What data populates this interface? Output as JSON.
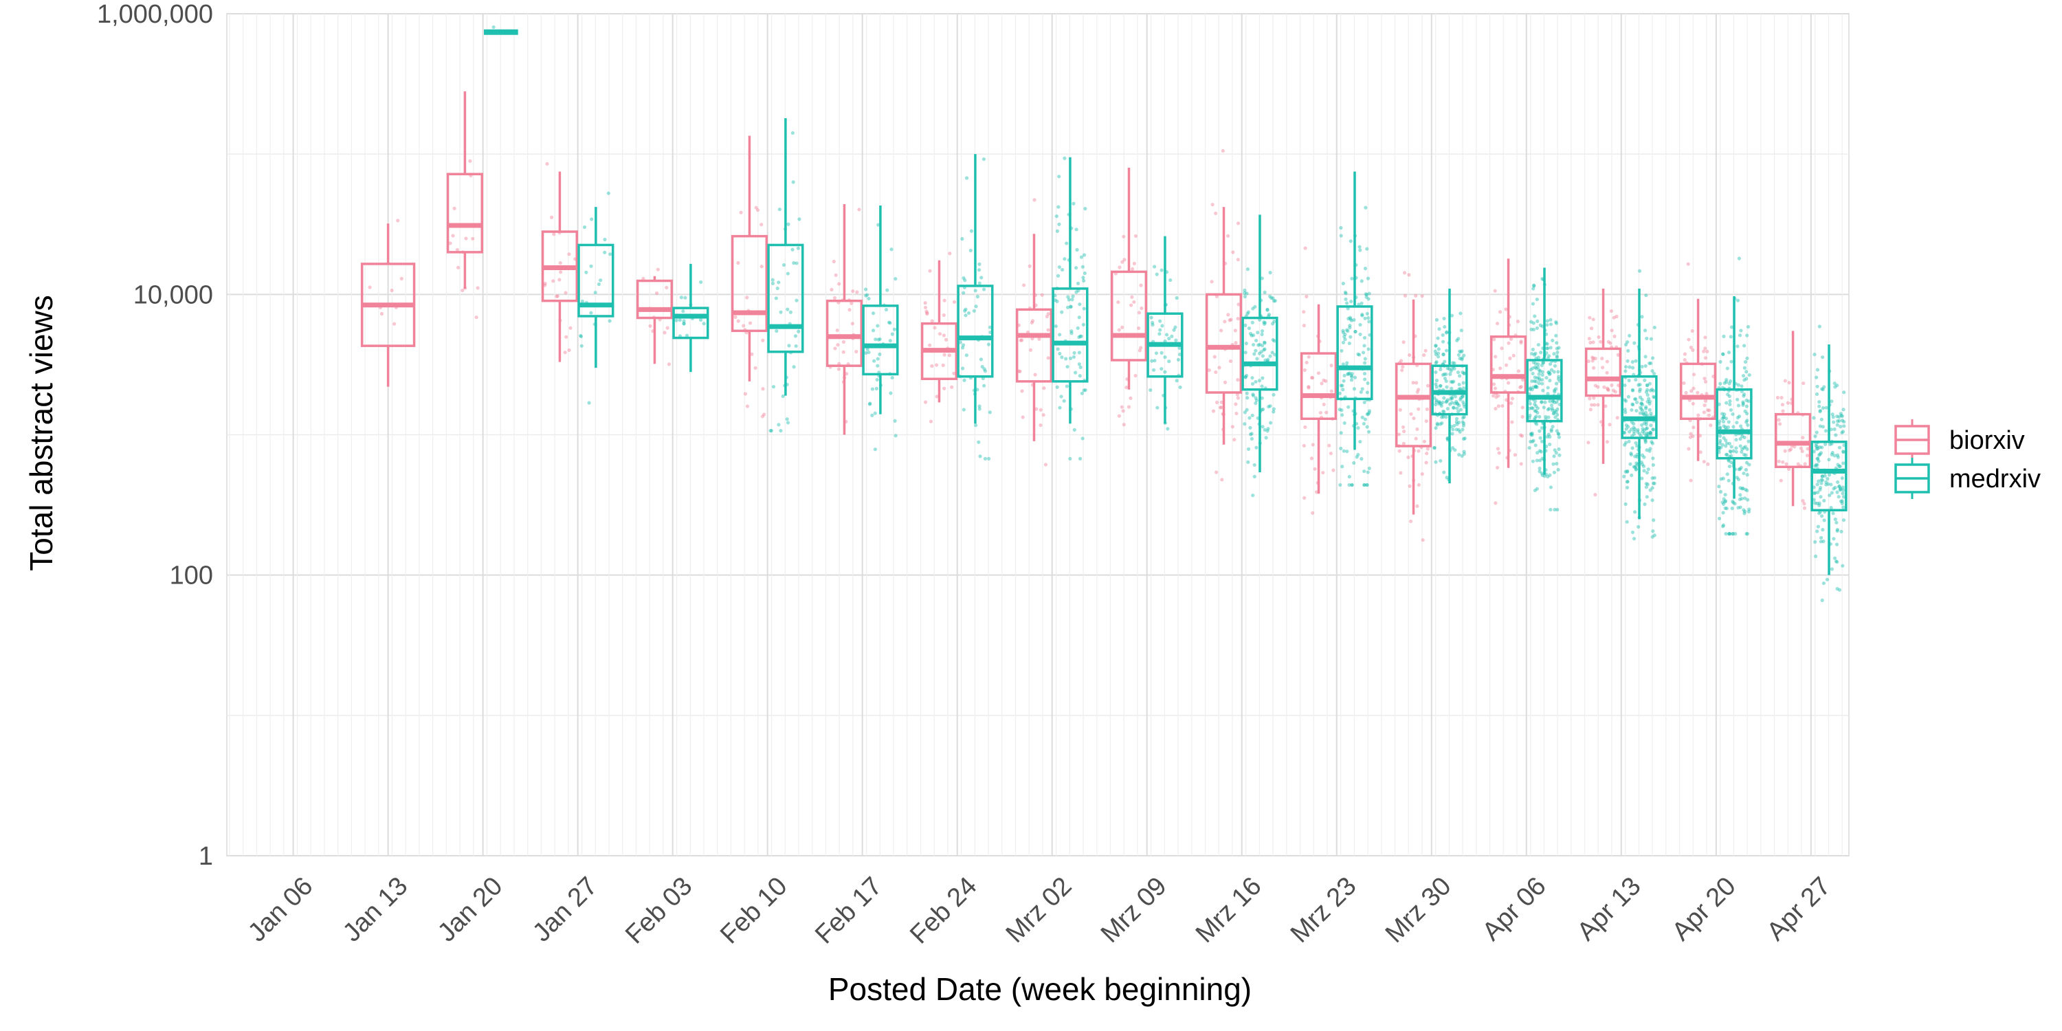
{
  "chart_data": {
    "type": "boxplot",
    "xlabel": "Posted Date (week beginning)",
    "ylabel": "Total abstract views",
    "y_scale": "log10",
    "ylim": [
      1,
      1000000
    ],
    "y_ticks": [
      {
        "value": 1,
        "label": "1"
      },
      {
        "value": 100,
        "label": "100"
      },
      {
        "value": 10000,
        "label": "10,000"
      },
      {
        "value": 1000000,
        "label": "1,000,000"
      }
    ],
    "categories": [
      "Jan 06",
      "Jan 13",
      "Jan 20",
      "Jan 27",
      "Feb 03",
      "Feb 10",
      "Feb 17",
      "Feb 24",
      "Mrz 02",
      "Mrz 09",
      "Mrz 16",
      "Mrz 23",
      "Mrz 30",
      "Apr 06",
      "Apr 13",
      "Apr 20",
      "Apr 27"
    ],
    "grid": true,
    "legend_position": "right",
    "series": [
      {
        "name": "biorxiv",
        "color": "#f0839a",
        "boxes": [
          null,
          {
            "min": 2200,
            "q1": 4300,
            "median": 8400,
            "q3": 16500,
            "max": 32000
          },
          {
            "min": 11000,
            "q1": 20000,
            "median": 31000,
            "q3": 72000,
            "max": 280000
          },
          {
            "min": 3300,
            "q1": 9000,
            "median": 15500,
            "q3": 28000,
            "max": 75000
          },
          {
            "min": 3200,
            "q1": 6800,
            "median": 7800,
            "q3": 12500,
            "max": 13500
          },
          {
            "min": 2400,
            "q1": 5500,
            "median": 7400,
            "q3": 26000,
            "max": 135000
          },
          {
            "min": 1000,
            "q1": 3100,
            "median": 5000,
            "q3": 9000,
            "max": 44000
          },
          {
            "min": 1700,
            "q1": 2500,
            "median": 4000,
            "q3": 6200,
            "max": 17500
          },
          {
            "min": 900,
            "q1": 2400,
            "median": 5100,
            "q3": 7800,
            "max": 27000
          },
          {
            "min": 2100,
            "q1": 3400,
            "median": 5100,
            "q3": 14500,
            "max": 80000
          },
          {
            "min": 850,
            "q1": 2000,
            "median": 4200,
            "q3": 10000,
            "max": 42000
          },
          {
            "min": 380,
            "q1": 1300,
            "median": 1900,
            "q3": 3800,
            "max": 8500
          },
          {
            "min": 270,
            "q1": 830,
            "median": 1850,
            "q3": 3200,
            "max": 9200
          },
          {
            "min": 580,
            "q1": 2000,
            "median": 2600,
            "q3": 5000,
            "max": 18000
          },
          {
            "min": 620,
            "q1": 1900,
            "median": 2500,
            "q3": 4100,
            "max": 11000
          },
          {
            "min": 650,
            "q1": 1300,
            "median": 1850,
            "q3": 3200,
            "max": 9300
          },
          {
            "min": 310,
            "q1": 590,
            "median": 870,
            "q3": 1400,
            "max": 5500
          }
        ],
        "points_shown": true
      },
      {
        "name": "medrxiv",
        "color": "#1fbfb0",
        "boxes": [
          null,
          null,
          {
            "min": 740000,
            "q1": 740000,
            "median": 740000,
            "q3": 740000,
            "max": 740000
          },
          {
            "min": 3000,
            "q1": 7000,
            "median": 8400,
            "q3": 22500,
            "max": 42000
          },
          {
            "min": 2800,
            "q1": 4900,
            "median": 7000,
            "q3": 8000,
            "max": 16500
          },
          {
            "min": 1900,
            "q1": 3900,
            "median": 5900,
            "q3": 22500,
            "max": 180000
          },
          {
            "min": 1400,
            "q1": 2700,
            "median": 4300,
            "q3": 8300,
            "max": 43000
          },
          {
            "min": 1200,
            "q1": 2600,
            "median": 4900,
            "q3": 11500,
            "max": 100000
          },
          {
            "min": 1200,
            "q1": 2400,
            "median": 4500,
            "q3": 11000,
            "max": 95000
          },
          {
            "min": 1200,
            "q1": 2600,
            "median": 4400,
            "q3": 7300,
            "max": 26000
          },
          {
            "min": 540,
            "q1": 2100,
            "median": 3200,
            "q3": 6800,
            "max": 37000
          },
          {
            "min": 780,
            "q1": 1800,
            "median": 3000,
            "q3": 8200,
            "max": 75000
          },
          {
            "min": 450,
            "q1": 1400,
            "median": 2000,
            "q3": 3100,
            "max": 11000
          },
          {
            "min": 520,
            "q1": 1250,
            "median": 1850,
            "q3": 3400,
            "max": 15500
          },
          {
            "min": 250,
            "q1": 950,
            "median": 1300,
            "q3": 2600,
            "max": 11000
          },
          {
            "min": 350,
            "q1": 680,
            "median": 1050,
            "q3": 2100,
            "max": 9700
          },
          {
            "min": 100,
            "q1": 290,
            "median": 550,
            "q3": 890,
            "max": 4400
          }
        ],
        "points_shown": true
      }
    ]
  }
}
